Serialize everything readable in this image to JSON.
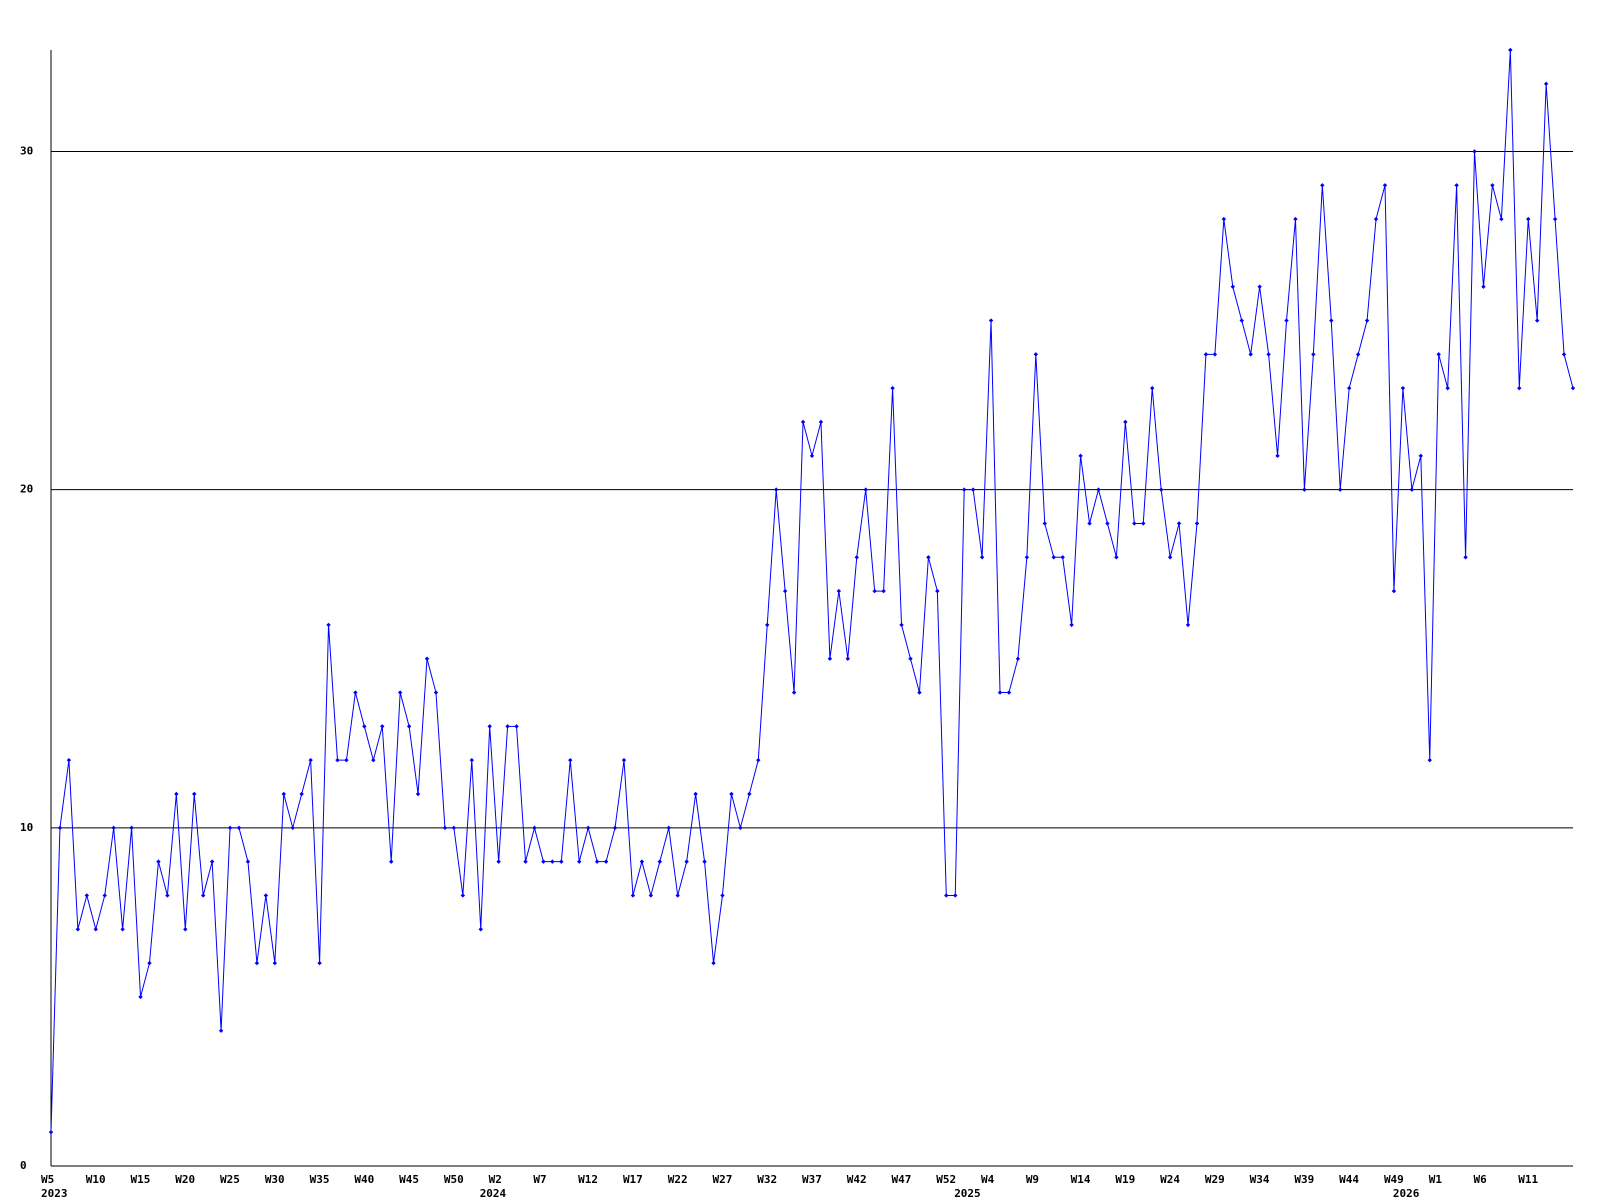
{
  "chart_data": {
    "type": "line",
    "categories": [
      "W5",
      null,
      null,
      null,
      null,
      "W10",
      null,
      null,
      null,
      null,
      "W15",
      null,
      null,
      null,
      null,
      "W20",
      null,
      null,
      null,
      null,
      "W25",
      null,
      null,
      null,
      null,
      "W30",
      null,
      null,
      null,
      null,
      "W35",
      null,
      null,
      null,
      null,
      "W40",
      null,
      null,
      null,
      null,
      "W45",
      null,
      null,
      null,
      null,
      "W50",
      null,
      null,
      null,
      null,
      "W2",
      null,
      null,
      null,
      null,
      "W7",
      null,
      null,
      null,
      null,
      "W12",
      null,
      null,
      null,
      null,
      "W17",
      null,
      null,
      null,
      null,
      "W22",
      null,
      null,
      null,
      null,
      "W27",
      null,
      null,
      null,
      null,
      "W32",
      null,
      null,
      null,
      null,
      "W37",
      null,
      null,
      null,
      null,
      "W42",
      null,
      null,
      null,
      null,
      "W47",
      null,
      null,
      null,
      null,
      "W52",
      null,
      null,
      null,
      null,
      "W4",
      null,
      null,
      null,
      null,
      "W9",
      null,
      null,
      null,
      null,
      "W14",
      null,
      null,
      null,
      null,
      "W19",
      null,
      null,
      null,
      null,
      "W24",
      null,
      null,
      null,
      null,
      "W29",
      null,
      null,
      null,
      null,
      "W34",
      null,
      null,
      null,
      null,
      "W39",
      null,
      null,
      null,
      null,
      "W44",
      null,
      null,
      null,
      null,
      "W49",
      null,
      null,
      null,
      null,
      "W1",
      null,
      null,
      null,
      null,
      "W6",
      null,
      null,
      null,
      null,
      "W11",
      null,
      null,
      null,
      null,
      null
    ],
    "years": [
      "2023",
      null,
      null,
      null,
      null,
      null,
      null,
      null,
      null,
      null,
      null,
      null,
      null,
      null,
      null,
      null,
      null,
      null,
      null,
      null,
      null,
      null,
      null,
      null,
      null,
      null,
      null,
      null,
      null,
      null,
      null,
      null,
      null,
      null,
      null,
      null,
      null,
      null,
      null,
      null,
      null,
      null,
      null,
      null,
      null,
      null,
      null,
      null,
      null,
      "2024",
      null,
      null,
      null,
      null,
      null,
      null,
      null,
      null,
      null,
      null,
      null,
      null,
      null,
      null,
      null,
      null,
      null,
      null,
      null,
      null,
      null,
      null,
      null,
      null,
      null,
      null,
      null,
      null,
      null,
      null,
      null,
      null,
      null,
      null,
      null,
      null,
      null,
      null,
      null,
      null,
      null,
      null,
      null,
      null,
      null,
      null,
      null,
      null,
      null,
      null,
      null,
      null,
      "2025",
      null,
      null,
      null,
      null,
      null,
      null,
      null,
      null,
      null,
      null,
      null,
      null,
      null,
      null,
      null,
      null,
      null,
      null,
      null,
      null,
      null,
      null,
      null,
      null,
      null,
      null,
      null,
      null,
      null,
      null,
      null,
      null,
      null,
      null,
      null,
      null,
      null,
      null,
      null,
      null,
      null,
      null,
      null,
      null,
      null,
      null,
      null,
      null,
      "2026",
      null,
      null,
      null,
      null,
      null,
      null,
      null,
      null,
      null,
      null,
      null,
      null,
      null,
      null,
      null
    ],
    "series": [
      {
        "color": "#0000ff",
        "values": [
          1,
          10,
          12,
          7,
          8,
          7,
          8,
          10,
          7,
          10,
          5,
          6,
          9,
          8,
          11,
          7,
          11,
          8,
          9,
          4,
          10,
          10,
          9,
          6,
          8,
          6,
          11,
          10,
          11,
          12,
          6,
          16,
          12,
          12,
          14,
          13,
          12,
          13,
          9,
          14,
          13,
          11,
          15,
          14,
          10,
          10,
          8,
          12,
          7,
          13,
          9,
          13,
          13,
          9,
          10,
          9,
          9,
          9,
          12,
          9,
          10,
          9,
          9,
          10,
          12,
          8,
          9,
          8,
          9,
          10,
          8,
          9,
          11,
          9,
          6,
          8,
          11,
          10,
          11,
          12,
          16,
          20,
          17,
          14,
          22,
          21,
          22,
          15,
          17,
          15,
          18,
          20,
          17,
          17,
          23,
          16,
          15,
          14,
          18,
          17,
          8,
          8,
          20,
          20,
          18,
          25,
          14,
          14,
          15,
          18,
          24,
          19,
          18,
          18,
          16,
          21,
          19,
          20,
          19,
          18,
          22,
          19,
          19,
          23,
          20,
          18,
          19,
          16,
          19,
          24,
          24,
          28,
          26,
          25,
          24,
          26,
          24,
          21,
          25,
          28,
          20,
          24,
          29,
          25,
          20,
          23,
          24,
          25,
          28,
          29,
          17,
          23,
          20,
          21,
          12,
          24,
          23,
          29,
          18,
          30,
          26,
          29,
          28,
          33,
          23,
          28,
          25,
          32,
          28,
          24,
          23
        ]
      }
    ],
    "ylim": [
      0,
      33
    ],
    "yticks": [
      0,
      10,
      20,
      30
    ],
    "grid": true
  }
}
